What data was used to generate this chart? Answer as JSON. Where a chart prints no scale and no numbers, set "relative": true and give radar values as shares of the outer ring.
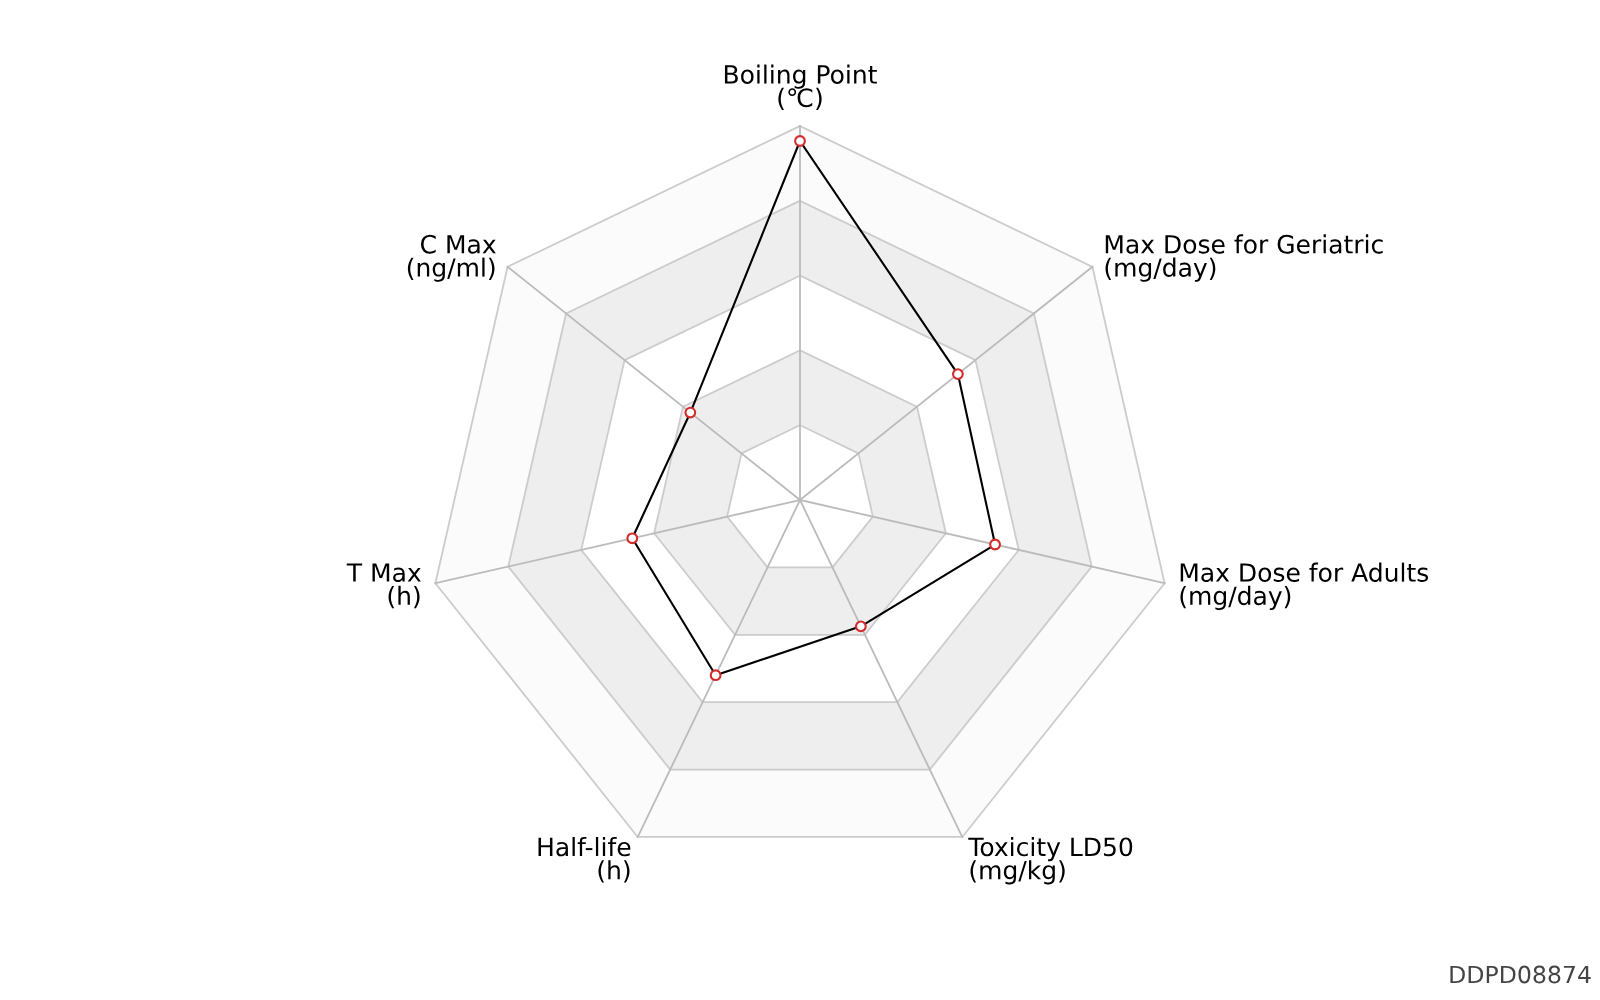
{
  "chart_data": {
    "type": "radar",
    "relative": true,
    "categories": [
      "Boiling Point\n(℃)",
      "Max Dose for Geriatric\n(mg/day)",
      "Max Dose for Adults\n(mg/day)",
      "Toxicity LD50\n(mg/kg)",
      "Half-life\n(h)",
      "T Max\n(h)",
      "C Max\n(ng/ml)"
    ],
    "series": [
      {
        "color": "#000000",
        "values": [
          0.96,
          0.54,
          0.535,
          0.375,
          0.52,
          0.46,
          0.375
        ]
      }
    ],
    "marker": "circle",
    "annotations": [
      "DDPD08874"
    ]
  }
}
